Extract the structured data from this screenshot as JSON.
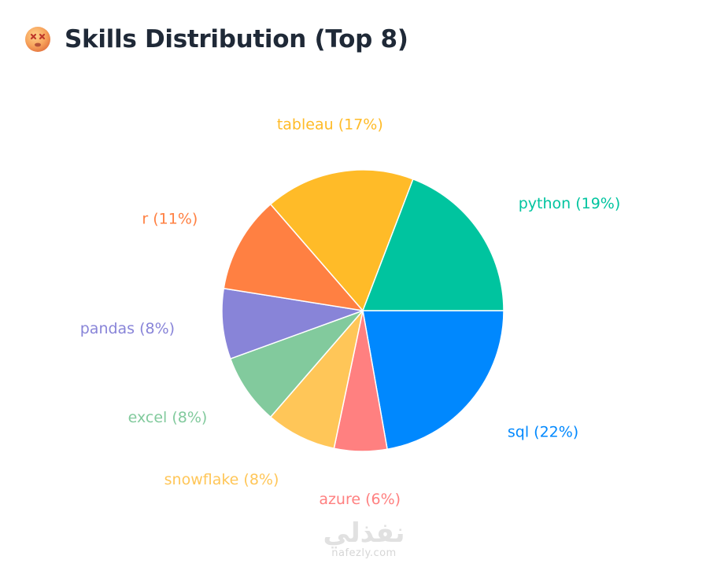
{
  "header": {
    "title": "Skills Distribution (Top 8)",
    "icon": "face-with-crossed-out-eyes-icon"
  },
  "chart_data": {
    "type": "pie",
    "title": "Skills Distribution (Top 8)",
    "start_angle_deg": 0,
    "direction": "clockwise",
    "slices": [
      {
        "label": "sql (22%)",
        "name": "sql",
        "percent": 22,
        "color": "#0088fe"
      },
      {
        "label": "azure (6%)",
        "name": "azure",
        "percent": 6,
        "color": "#ff8080"
      },
      {
        "label": "snowflake (8%)",
        "name": "snowflake",
        "percent": 8,
        "color": "#ffc658"
      },
      {
        "label": "excel (8%)",
        "name": "excel",
        "percent": 8,
        "color": "#82ca9d"
      },
      {
        "label": "pandas (8%)",
        "name": "pandas",
        "percent": 8,
        "color": "#8884d8"
      },
      {
        "label": "r (11%)",
        "name": "r",
        "percent": 11,
        "color": "#ff8042"
      },
      {
        "label": "tableau (17%)",
        "name": "tableau",
        "percent": 17,
        "color": "#ffbb28"
      },
      {
        "label": "python (19%)",
        "name": "python",
        "percent": 19,
        "color": "#00c49f"
      }
    ]
  },
  "watermark": {
    "logo": "نفذلي",
    "url": "nafezly.com"
  }
}
